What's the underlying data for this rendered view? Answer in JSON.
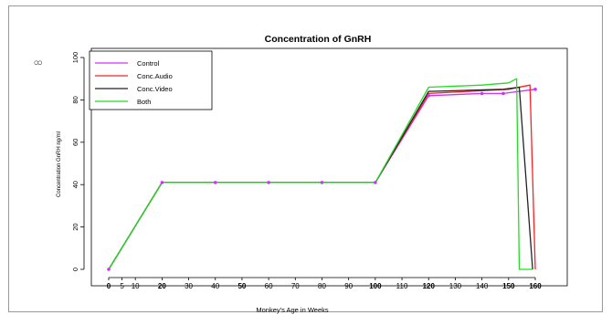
{
  "page": {
    "stray_mark": "ထ"
  },
  "chart_data": {
    "type": "line",
    "title": "Concentration of GnRH",
    "xlabel": "Monkey's Age in Weeks",
    "ylabel": "Concentration GnRH ng/ml",
    "xlim": [
      0,
      165
    ],
    "ylim": [
      0,
      100
    ],
    "x_ticks": [
      0,
      5,
      10,
      20,
      30,
      40,
      50,
      60,
      70,
      80,
      90,
      100,
      110,
      120,
      130,
      140,
      150,
      160
    ],
    "x_ticks_bold": [
      0,
      20,
      50,
      100,
      120,
      150,
      160
    ],
    "y_ticks": [
      0,
      20,
      40,
      60,
      80,
      100
    ],
    "legend_position": "top-left",
    "grid": false,
    "series": [
      {
        "name": "Control",
        "color": "#cc33ff",
        "x": [
          0,
          20,
          40,
          60,
          80,
          100,
          120,
          140,
          148,
          160
        ],
        "y": [
          0,
          41,
          41,
          41,
          41,
          41,
          82,
          83,
          83,
          85
        ],
        "markers": true
      },
      {
        "name": "Conc.Audio",
        "color": "#ff2020",
        "x": [
          0,
          20,
          100,
          120,
          150,
          158,
          160
        ],
        "y": [
          0,
          41,
          41,
          83,
          85,
          87,
          0
        ]
      },
      {
        "name": "Conc.Video",
        "color": "#222222",
        "x": [
          0,
          20,
          100,
          120,
          148,
          154,
          159
        ],
        "y": [
          0,
          41,
          41,
          84,
          85,
          86,
          0
        ]
      },
      {
        "name": "Both",
        "color": "#22dd22",
        "x": [
          0,
          20,
          100,
          120,
          140,
          150,
          153,
          154,
          159
        ],
        "y": [
          0,
          41,
          41,
          86,
          87,
          88,
          90,
          0,
          0
        ]
      }
    ]
  }
}
